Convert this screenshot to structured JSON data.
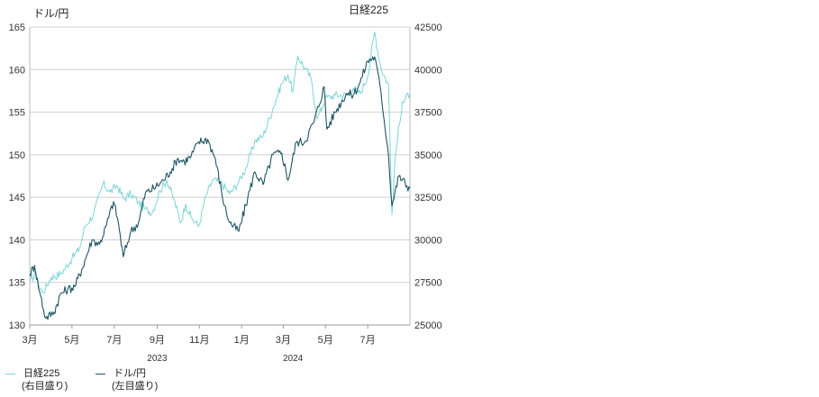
{
  "left_axis_title": "ドル/円",
  "right_axis_title": "日経225",
  "legend": [
    {
      "label": "日経225",
      "sublabel": "(右目盛り)",
      "color": "#7fd3d8"
    },
    {
      "label": "ドル/円",
      "sublabel": "(左目盛り)",
      "color": "#1e5563"
    }
  ],
  "chart_data": {
    "type": "line",
    "title": "",
    "x_tick_labels": [
      "3月",
      "5月",
      "7月",
      "9月",
      "11月",
      "1月",
      "3月",
      "5月",
      "7月"
    ],
    "x_tick_dates": [
      "2023-03-01",
      "2023-05-01",
      "2023-07-01",
      "2023-09-01",
      "2023-11-01",
      "2024-01-01",
      "2024-03-01",
      "2024-05-01",
      "2024-07-01"
    ],
    "year_labels": [
      {
        "label": "2023",
        "date": "2023-09-01"
      },
      {
        "label": "2024",
        "date": "2024-03-15"
      }
    ],
    "x_range": [
      "2023-03-01",
      "2024-08-31"
    ],
    "left_axis": {
      "label": "ドル/円",
      "min": 130,
      "max": 165,
      "ticks": [
        130,
        135,
        140,
        145,
        150,
        155,
        160,
        165
      ]
    },
    "right_axis": {
      "label": "日経225",
      "min": 25000,
      "max": 42500,
      "ticks": [
        25000,
        27500,
        30000,
        32500,
        35000,
        37500,
        40000,
        42500
      ]
    },
    "grid": true,
    "legend_position": "bottom-left",
    "series": [
      {
        "name": "日経225",
        "axis": "right",
        "color": "#7fd3d8",
        "points": [
          [
            "2023-03-01",
            27500
          ],
          [
            "2023-03-10",
            28100
          ],
          [
            "2023-03-15",
            27200
          ],
          [
            "2023-03-20",
            26900
          ],
          [
            "2023-04-01",
            27800
          ],
          [
            "2023-04-15",
            28000
          ],
          [
            "2023-05-01",
            28900
          ],
          [
            "2023-05-12",
            29500
          ],
          [
            "2023-05-20",
            30800
          ],
          [
            "2023-06-01",
            31500
          ],
          [
            "2023-06-15",
            33300
          ],
          [
            "2023-06-25",
            32800
          ],
          [
            "2023-07-05",
            33200
          ],
          [
            "2023-07-15",
            32400
          ],
          [
            "2023-07-25",
            32700
          ],
          [
            "2023-08-05",
            32200
          ],
          [
            "2023-08-15",
            31800
          ],
          [
            "2023-08-25",
            31600
          ],
          [
            "2023-09-05",
            32900
          ],
          [
            "2023-09-15",
            33500
          ],
          [
            "2023-09-25",
            32400
          ],
          [
            "2023-10-05",
            31000
          ],
          [
            "2023-10-12",
            32100
          ],
          [
            "2023-10-20",
            31300
          ],
          [
            "2023-10-31",
            30800
          ],
          [
            "2023-11-10",
            32500
          ],
          [
            "2023-11-20",
            33500
          ],
          [
            "2023-12-01",
            33400
          ],
          [
            "2023-12-15",
            32700
          ],
          [
            "2023-12-28",
            33400
          ],
          [
            "2024-01-10",
            34500
          ],
          [
            "2024-01-20",
            35800
          ],
          [
            "2024-02-01",
            36100
          ],
          [
            "2024-02-15",
            37700
          ],
          [
            "2024-02-28",
            39200
          ],
          [
            "2024-03-08",
            39700
          ],
          [
            "2024-03-15",
            38700
          ],
          [
            "2024-03-22",
            40800
          ],
          [
            "2024-04-01",
            40100
          ],
          [
            "2024-04-10",
            39500
          ],
          [
            "2024-04-19",
            37100
          ],
          [
            "2024-05-01",
            38300
          ],
          [
            "2024-05-15",
            38500
          ],
          [
            "2024-05-31",
            38500
          ],
          [
            "2024-06-10",
            38900
          ],
          [
            "2024-06-20",
            38600
          ],
          [
            "2024-07-01",
            39600
          ],
          [
            "2024-07-11",
            42200
          ],
          [
            "2024-07-20",
            40100
          ],
          [
            "2024-07-31",
            39100
          ],
          [
            "2024-08-05",
            31500
          ],
          [
            "2024-08-10",
            35000
          ],
          [
            "2024-08-20",
            38100
          ],
          [
            "2024-08-31",
            38600
          ]
        ]
      },
      {
        "name": "ドル/円",
        "axis": "left",
        "color": "#1e5563",
        "points": [
          [
            "2023-03-01",
            136.0
          ],
          [
            "2023-03-08",
            137.0
          ],
          [
            "2023-03-15",
            134.0
          ],
          [
            "2023-03-24",
            130.8
          ],
          [
            "2023-04-05",
            131.5
          ],
          [
            "2023-04-15",
            133.7
          ],
          [
            "2023-04-25",
            134.2
          ],
          [
            "2023-05-05",
            134.5
          ],
          [
            "2023-05-15",
            136.5
          ],
          [
            "2023-05-30",
            140.0
          ],
          [
            "2023-06-10",
            139.5
          ],
          [
            "2023-06-20",
            141.8
          ],
          [
            "2023-06-30",
            144.5
          ],
          [
            "2023-07-07",
            142.0
          ],
          [
            "2023-07-14",
            138.0
          ],
          [
            "2023-07-25",
            141.0
          ],
          [
            "2023-08-05",
            142.0
          ],
          [
            "2023-08-15",
            145.5
          ],
          [
            "2023-08-30",
            146.2
          ],
          [
            "2023-09-10",
            147.0
          ],
          [
            "2023-09-20",
            148.0
          ],
          [
            "2023-09-30",
            149.5
          ],
          [
            "2023-10-10",
            149.2
          ],
          [
            "2023-10-20",
            149.8
          ],
          [
            "2023-10-31",
            151.5
          ],
          [
            "2023-11-13",
            151.8
          ],
          [
            "2023-11-24",
            149.5
          ],
          [
            "2023-12-07",
            144.0
          ],
          [
            "2023-12-15",
            142.0
          ],
          [
            "2023-12-28",
            141.0
          ],
          [
            "2024-01-10",
            145.0
          ],
          [
            "2024-01-20",
            148.0
          ],
          [
            "2024-02-01",
            146.5
          ],
          [
            "2024-02-15",
            150.0
          ],
          [
            "2024-02-28",
            150.2
          ],
          [
            "2024-03-08",
            147.0
          ],
          [
            "2024-03-20",
            151.5
          ],
          [
            "2024-04-01",
            151.5
          ],
          [
            "2024-04-15",
            154.0
          ],
          [
            "2024-04-29",
            158.0
          ],
          [
            "2024-05-03",
            153.0
          ],
          [
            "2024-05-15",
            155.0
          ],
          [
            "2024-05-31",
            157.2
          ],
          [
            "2024-06-10",
            157.0
          ],
          [
            "2024-06-20",
            158.5
          ],
          [
            "2024-07-01",
            161.0
          ],
          [
            "2024-07-11",
            161.5
          ],
          [
            "2024-07-20",
            157.5
          ],
          [
            "2024-07-31",
            150.0
          ],
          [
            "2024-08-05",
            144.0
          ],
          [
            "2024-08-15",
            147.5
          ],
          [
            "2024-08-31",
            146.0
          ]
        ]
      }
    ]
  }
}
